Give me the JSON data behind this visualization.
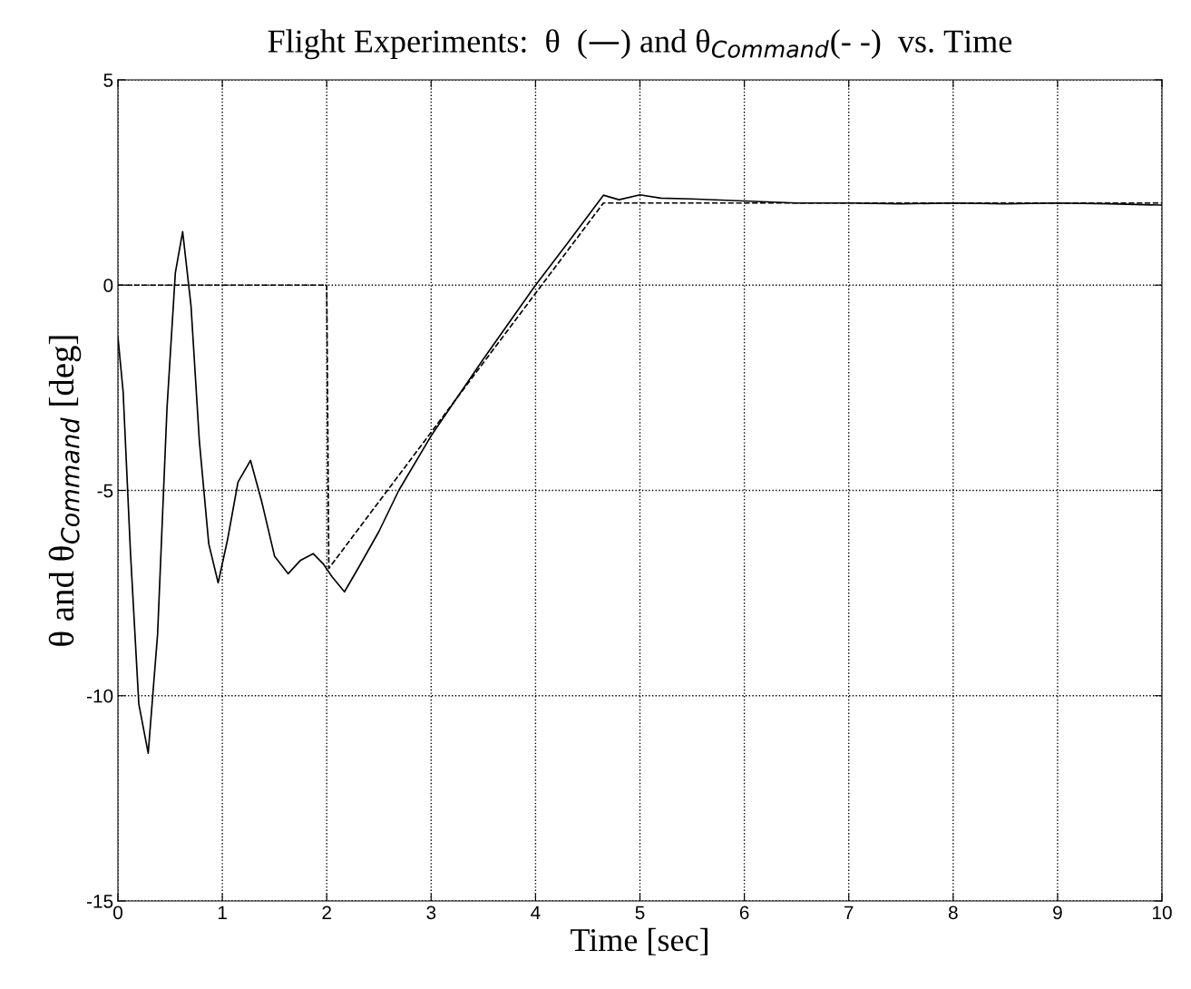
{
  "chart_data": {
    "type": "line",
    "title": "Flight Experiments:  θ  (—) and θ$_{Command}$(- -)  vs. Time",
    "xlabel": "Time [sec]",
    "ylabel": "θ and θ$_{Command}$ [deg]",
    "xlim": [
      0,
      10
    ],
    "ylim": [
      -15,
      5
    ],
    "xticks": [
      0,
      1,
      2,
      3,
      4,
      5,
      6,
      7,
      8,
      9,
      10
    ],
    "yticks": [
      -15,
      -10,
      -5,
      0,
      5
    ],
    "grid": true,
    "series": [
      {
        "color": "#000000",
        "line_style": "solid",
        "x": [
          0,
          0.05,
          0.12,
          0.2,
          0.29,
          0.38,
          0.47,
          0.55,
          0.62,
          0.7,
          0.78,
          0.87,
          0.96,
          1.05,
          1.15,
          1.27,
          1.38,
          1.5,
          1.63,
          1.75,
          1.87,
          1.97,
          2.05,
          2.17,
          2.3,
          2.5,
          2.69,
          3.0,
          3.5,
          4.0,
          4.3,
          4.65,
          4.8,
          5.0,
          5.2,
          5.5,
          6.0,
          6.5,
          7.0,
          7.5,
          8.0,
          8.5,
          9.0,
          9.5,
          10.0
        ],
        "values": [
          -1.26,
          -2.6,
          -6.5,
          -10.2,
          -11.4,
          -8.5,
          -3.0,
          0.3,
          1.3,
          -0.5,
          -3.8,
          -6.3,
          -7.25,
          -6.2,
          -4.8,
          -4.27,
          -5.3,
          -6.6,
          -7.03,
          -6.7,
          -6.54,
          -6.8,
          -7.1,
          -7.47,
          -6.9,
          -6.0,
          -5.0,
          -3.67,
          -1.8,
          0.0,
          1.0,
          2.19,
          2.08,
          2.2,
          2.12,
          2.1,
          2.05,
          2.0,
          2.0,
          1.98,
          2.0,
          1.98,
          2.0,
          1.98,
          1.95
        ]
      },
      {
        "color": "#000000",
        "line_style": "dashed",
        "x": [
          0,
          2.0,
          2.02,
          4.65,
          10.0
        ],
        "values": [
          0,
          0,
          -6.9,
          2.0,
          2.0
        ]
      }
    ]
  }
}
